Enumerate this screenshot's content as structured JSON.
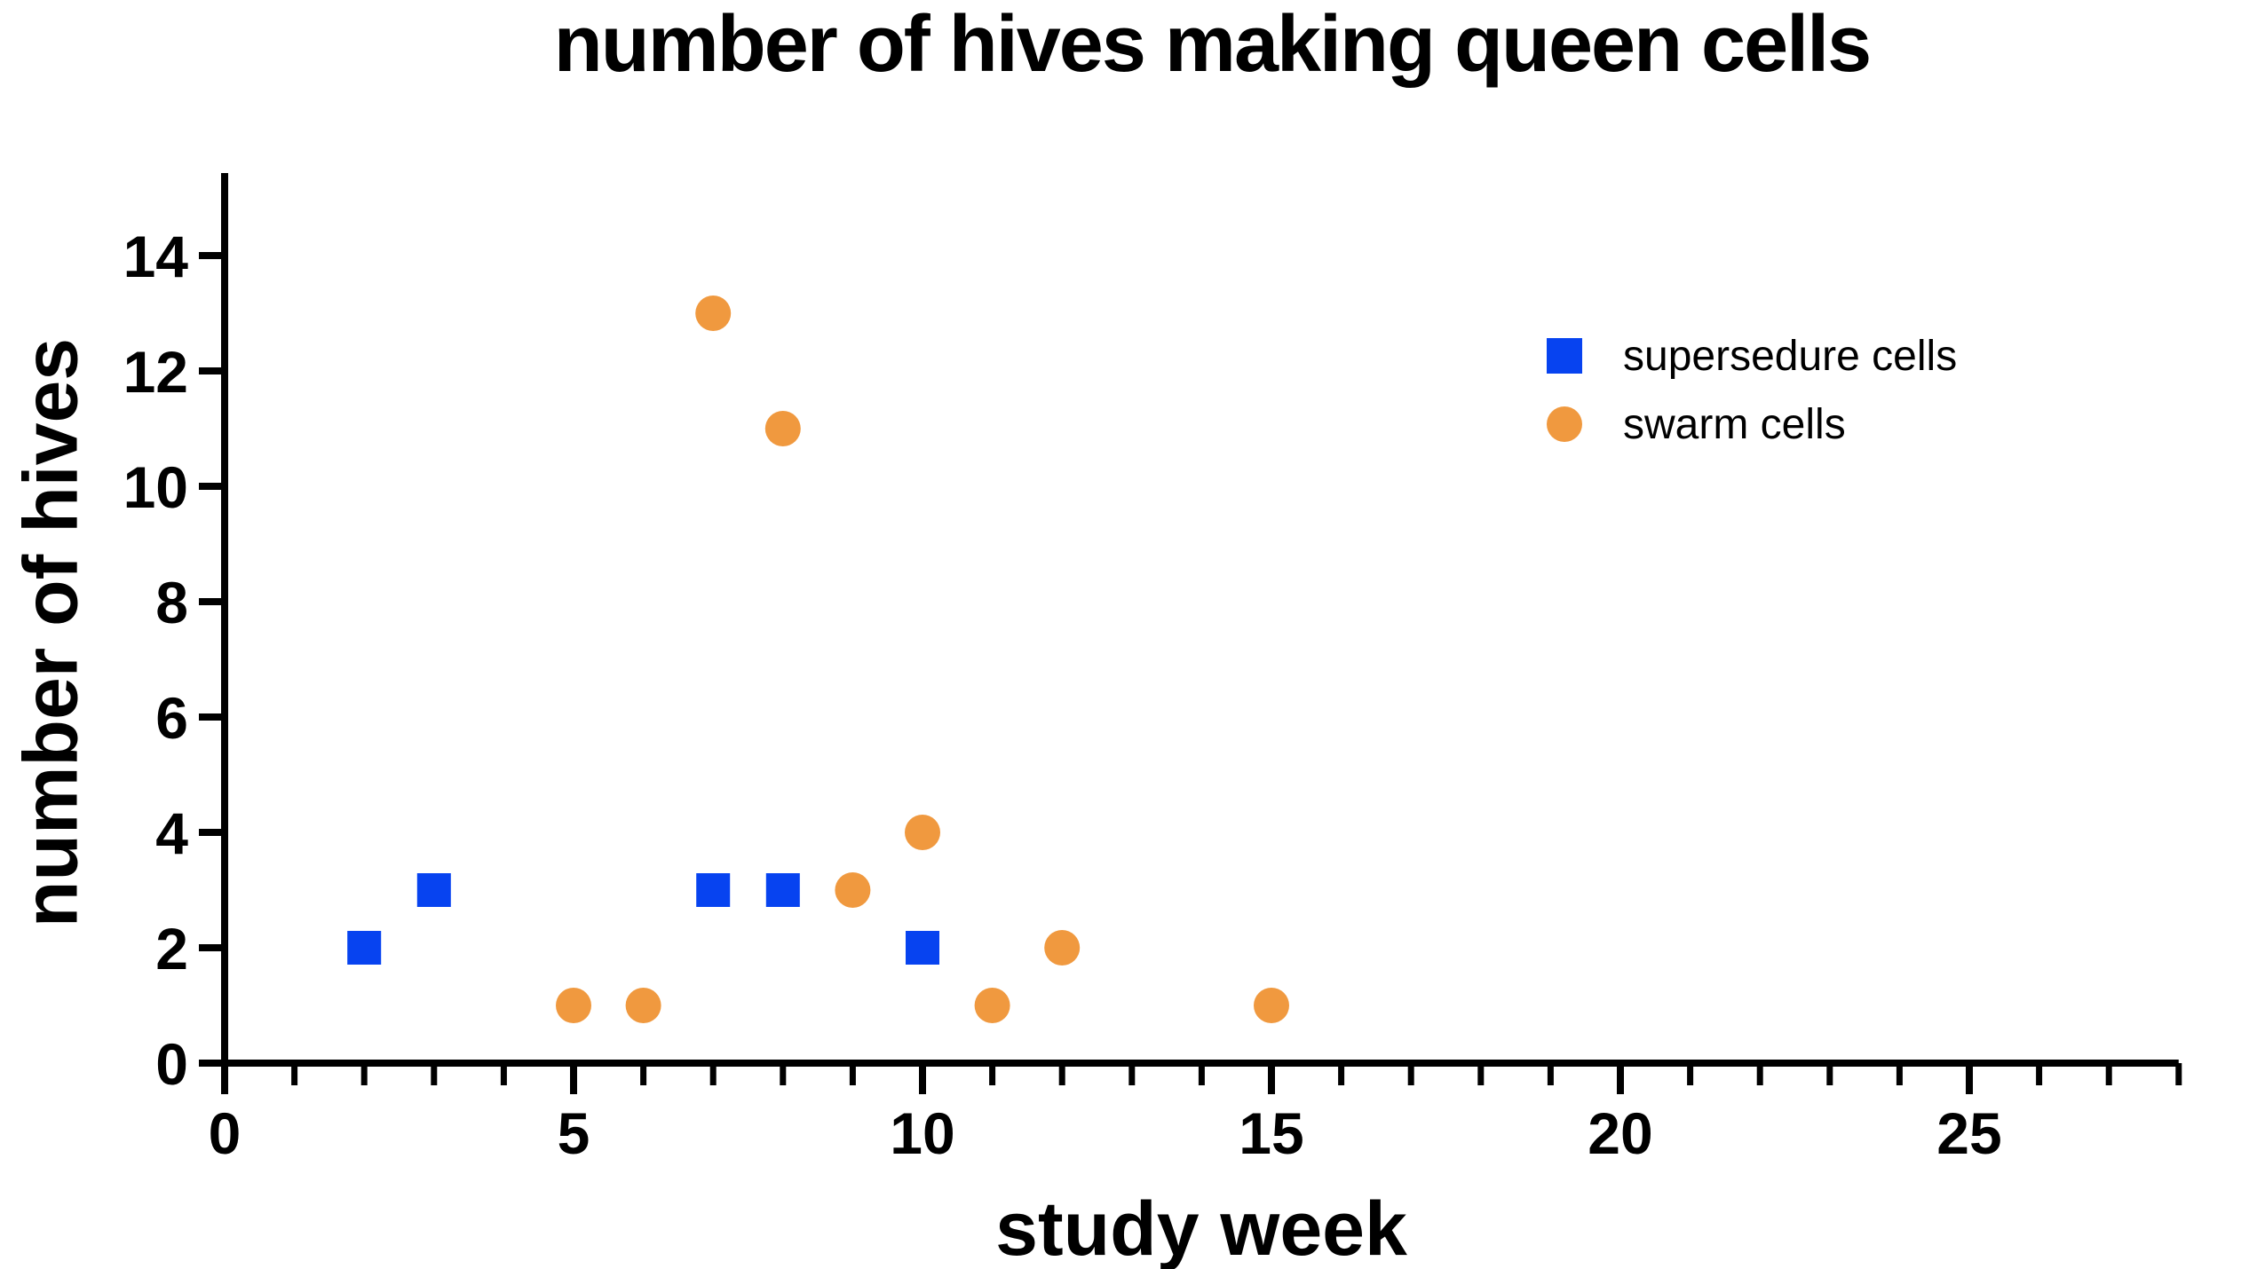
{
  "chart_data": {
    "type": "scatter",
    "title": "number of hives making queen cells",
    "xlabel": "study week",
    "ylabel": "number of hives",
    "xlim": [
      0,
      28
    ],
    "ylim": [
      0,
      14
    ],
    "x_major_ticks": [
      0,
      5,
      10,
      15,
      20,
      25
    ],
    "x_minor_tick_step": 1,
    "y_major_ticks": [
      0,
      2,
      4,
      6,
      8,
      10,
      12,
      14
    ],
    "grid": false,
    "axis_color": "#000000",
    "background_color": "#FFFFFF",
    "legend_position": "inside-top-right",
    "series": [
      {
        "name": "supersedure cells",
        "marker": "square",
        "color": "#0743F0",
        "points": [
          [
            2,
            2
          ],
          [
            3,
            3
          ],
          [
            7,
            3
          ],
          [
            8,
            3
          ],
          [
            10,
            2
          ]
        ]
      },
      {
        "name": "swarm cells",
        "marker": "circle",
        "color": "#F0993F",
        "points": [
          [
            5,
            1
          ],
          [
            6,
            1
          ],
          [
            7,
            13
          ],
          [
            8,
            11
          ],
          [
            9,
            3
          ],
          [
            10,
            4
          ],
          [
            11,
            1
          ],
          [
            12,
            2
          ],
          [
            15,
            1
          ]
        ]
      }
    ]
  }
}
